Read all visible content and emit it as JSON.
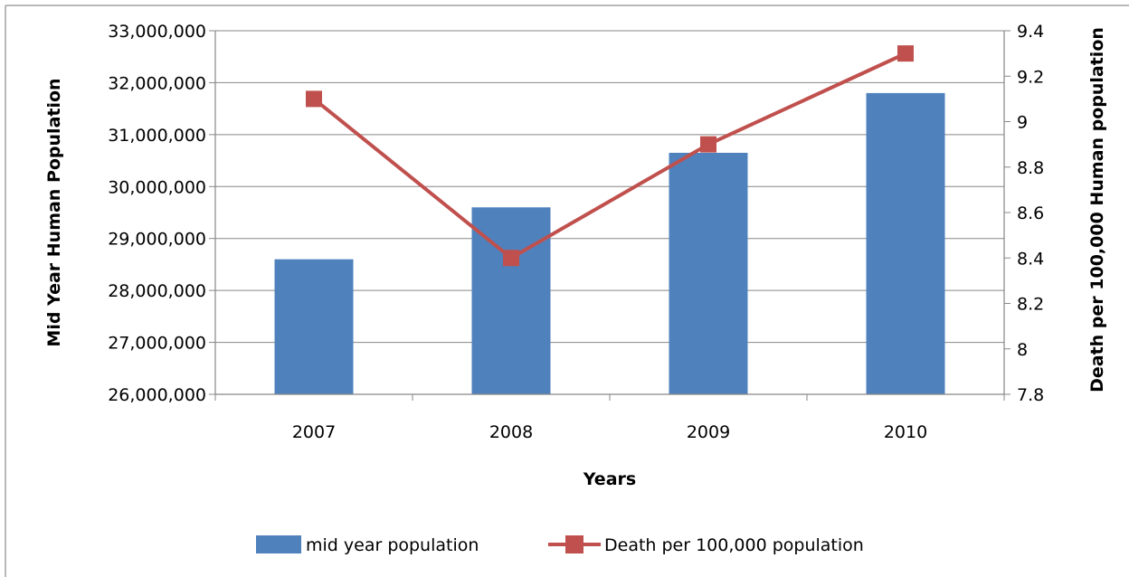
{
  "chart_data": {
    "type": "bar+line",
    "title": "",
    "categories": [
      "2007",
      "2008",
      "2009",
      "2010"
    ],
    "xlabel": "Years",
    "ylabel": "Mid Year  Human Population",
    "y2label": "Death per 100,000 Human population",
    "ylim": [
      26000000,
      33000000
    ],
    "y2lim": [
      7.8,
      9.4
    ],
    "y_ticks": [
      "26,000,000",
      "27,000,000",
      "28,000,000",
      "29,000,000",
      "30,000,000",
      "31,000,000",
      "32,000,000",
      "33,000,000"
    ],
    "y2_ticks": [
      "7.8",
      "8",
      "8.2",
      "8.4",
      "8.6",
      "8.8",
      "9",
      "9.2",
      "9.4"
    ],
    "grid": true,
    "legend_position": "bottom",
    "series": [
      {
        "name": "mid year population",
        "type": "bar",
        "axis": "left",
        "color": "#4f81bd",
        "values": [
          28600000,
          29600000,
          30650000,
          31800000
        ]
      },
      {
        "name": "Death per 100,000 population",
        "type": "line",
        "axis": "right",
        "color": "#c0504d",
        "marker": "square",
        "values": [
          9.1,
          8.4,
          8.9,
          9.3
        ]
      }
    ]
  }
}
